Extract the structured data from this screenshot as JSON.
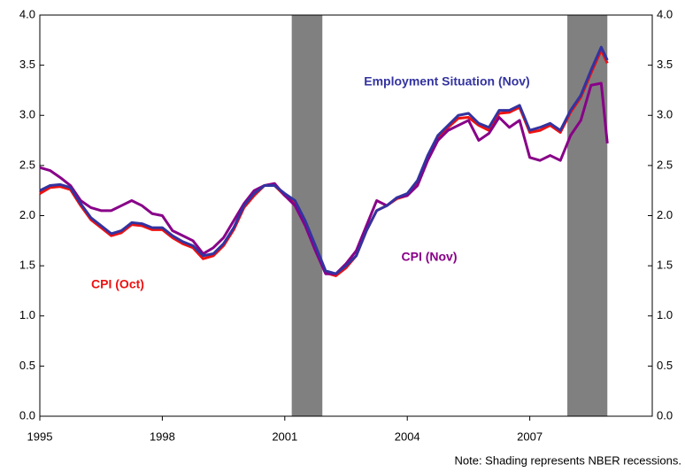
{
  "chart_data": {
    "type": "line",
    "note": "Note: Shading represents NBER recessions.",
    "xlim": [
      1995,
      2010
    ],
    "xticks": [
      1995,
      1998,
      2001,
      2004,
      2007
    ],
    "ylim": [
      0,
      4
    ],
    "yticks": [
      {
        "value": 0,
        "label": "0.0"
      },
      {
        "value": 0.5,
        "label": "0.5"
      },
      {
        "value": 1,
        "label": "1.0"
      },
      {
        "value": 1.5,
        "label": "1.5"
      },
      {
        "value": 2,
        "label": "2.0"
      },
      {
        "value": 2.5,
        "label": "2.5"
      },
      {
        "value": 3,
        "label": "3.0"
      },
      {
        "value": 3.5,
        "label": "3.5"
      },
      {
        "value": 4,
        "label": "4.0"
      }
    ],
    "y2lim": [
      0,
      4
    ],
    "y2ticks": [
      {
        "value": 0,
        "label": "0.0"
      },
      {
        "value": 0.5,
        "label": "0.5"
      },
      {
        "value": 1,
        "label": "1.0"
      },
      {
        "value": 1.5,
        "label": "1.5"
      },
      {
        "value": 2,
        "label": "2.0"
      },
      {
        "value": 2.5,
        "label": "2.5"
      },
      {
        "value": 3,
        "label": "3.0"
      },
      {
        "value": 3.5,
        "label": "3.5"
      },
      {
        "value": 4,
        "label": "4.0"
      }
    ],
    "recessions": [
      [
        2001.17,
        2001.92
      ],
      [
        2007.92,
        2008.9
      ]
    ],
    "recession_color": "#808080",
    "x": [
      1995,
      1995.25,
      1995.5,
      1995.75,
      1996,
      1996.25,
      1996.5,
      1996.75,
      1997,
      1997.25,
      1997.5,
      1997.75,
      1998,
      1998.25,
      1998.5,
      1998.75,
      1999,
      1999.25,
      1999.5,
      1999.75,
      2000,
      2000.25,
      2000.5,
      2000.75,
      2001,
      2001.25,
      2001.5,
      2001.75,
      2002,
      2002.25,
      2002.5,
      2002.75,
      2003,
      2003.25,
      2003.5,
      2003.75,
      2004,
      2004.25,
      2004.5,
      2004.75,
      2005,
      2005.25,
      2005.5,
      2005.75,
      2006,
      2006.25,
      2006.5,
      2006.75,
      2007,
      2007.25,
      2007.5,
      2007.75,
      2008,
      2008.25,
      2008.5,
      2008.75,
      2008.9
    ],
    "series": [
      {
        "name": "CPI (Oct)",
        "color": "#ee1111",
        "values": [
          2.22,
          2.28,
          2.29,
          2.26,
          2.1,
          1.96,
          1.88,
          1.8,
          1.83,
          1.91,
          1.9,
          1.86,
          1.86,
          1.78,
          1.72,
          1.68,
          1.57,
          1.6,
          1.7,
          1.86,
          2.08,
          2.2,
          2.3,
          2.3,
          2.2,
          2.13,
          1.93,
          1.68,
          1.43,
          1.4,
          1.48,
          1.6,
          1.85,
          2.05,
          2.1,
          2.17,
          2.2,
          2.33,
          2.58,
          2.78,
          2.88,
          2.97,
          2.98,
          2.9,
          2.85,
          3.02,
          3.03,
          3.08,
          2.83,
          2.85,
          2.9,
          2.83,
          3.03,
          3.18,
          3.42,
          3.65,
          3.52
        ]
      },
      {
        "name": "CPI (Nov)",
        "color": "#880088",
        "values": [
          2.48,
          2.45,
          2.38,
          2.3,
          2.15,
          2.08,
          2.05,
          2.05,
          2.1,
          2.15,
          2.1,
          2.02,
          2.0,
          1.85,
          1.8,
          1.75,
          1.62,
          1.68,
          1.78,
          1.95,
          2.12,
          2.25,
          2.3,
          2.32,
          2.2,
          2.1,
          1.9,
          1.65,
          1.42,
          1.42,
          1.52,
          1.65,
          1.9,
          2.15,
          2.1,
          2.18,
          2.2,
          2.3,
          2.55,
          2.75,
          2.85,
          2.9,
          2.95,
          2.75,
          2.82,
          2.98,
          2.88,
          2.95,
          2.58,
          2.55,
          2.6,
          2.55,
          2.8,
          2.95,
          3.3,
          3.32,
          2.72
        ]
      },
      {
        "name": "Employment Situation (Nov)",
        "color": "#3333a0",
        "values": [
          2.25,
          2.3,
          2.31,
          2.28,
          2.12,
          1.98,
          1.9,
          1.82,
          1.85,
          1.93,
          1.92,
          1.88,
          1.88,
          1.8,
          1.74,
          1.7,
          1.6,
          1.62,
          1.72,
          1.88,
          2.1,
          2.22,
          2.3,
          2.3,
          2.22,
          2.15,
          1.95,
          1.7,
          1.45,
          1.42,
          1.5,
          1.6,
          1.85,
          2.05,
          2.1,
          2.18,
          2.22,
          2.35,
          2.6,
          2.8,
          2.9,
          3.0,
          3.02,
          2.92,
          2.88,
          3.05,
          3.05,
          3.1,
          2.85,
          2.88,
          2.92,
          2.85,
          3.05,
          3.2,
          3.45,
          3.68,
          3.55
        ]
      }
    ]
  }
}
